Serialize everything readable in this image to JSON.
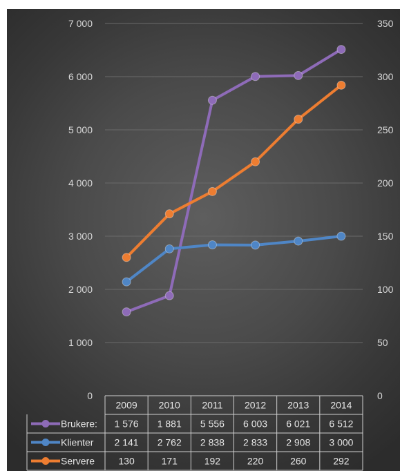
{
  "chart_data": {
    "type": "line",
    "categories": [
      "2009",
      "2010",
      "2011",
      "2012",
      "2013",
      "2014"
    ],
    "series": [
      {
        "name": "Brukere:",
        "axis": "left",
        "color": "#8e6bb8",
        "values": [
          1576,
          1881,
          5556,
          6003,
          6021,
          6512
        ],
        "labels": [
          "1 576",
          "1 881",
          "5 556",
          "6 003",
          "6 021",
          "6 512"
        ]
      },
      {
        "name": "Klienter",
        "axis": "left",
        "color": "#4f86c6",
        "values": [
          2141,
          2762,
          2838,
          2833,
          2908,
          3000
        ],
        "labels": [
          "2 141",
          "2 762",
          "2 838",
          "2 833",
          "2 908",
          "3 000"
        ]
      },
      {
        "name": "Servere",
        "axis": "right",
        "color": "#ed7d31",
        "values": [
          130,
          171,
          192,
          220,
          260,
          292
        ],
        "labels": [
          "130",
          "171",
          "192",
          "220",
          "260",
          "292"
        ]
      }
    ],
    "y_left": {
      "range": [
        0,
        7000
      ],
      "ticks": [
        "0",
        "1 000",
        "2 000",
        "3 000",
        "4 000",
        "5 000",
        "6 000",
        "7 000"
      ]
    },
    "y_right": {
      "range": [
        0,
        350
      ],
      "ticks": [
        "0",
        "50",
        "100",
        "150",
        "200",
        "250",
        "300",
        "350"
      ]
    },
    "grid": true,
    "legend": "data table below the plot",
    "background": "#3f3f3f",
    "gridline_color": "#6a6a6a",
    "table_border_color": "#d0d0d0"
  }
}
